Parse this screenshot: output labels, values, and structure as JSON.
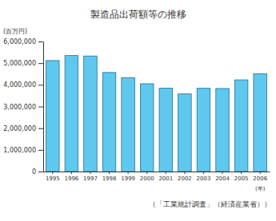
{
  "chart_data": {
    "type": "bar",
    "title": "製造品出荷額等の推移",
    "y_label": "(百万円)",
    "x_label": "(年)",
    "annotations": [
      "（「工業統計調査」（経済産業省））"
    ],
    "categories": [
      "1995",
      "1996",
      "1997",
      "1998",
      "1999",
      "2000",
      "2001",
      "2002",
      "2003",
      "2004",
      "2005",
      "2006"
    ],
    "values": [
      5120000,
      5350000,
      5330000,
      4570000,
      4330000,
      4050000,
      3850000,
      3580000,
      3840000,
      3830000,
      4230000,
      4510000
    ],
    "color": "#5fc8ef",
    "ylim": [
      0,
      6000000
    ],
    "yticks": [
      0,
      {
        "value": 1000000,
        "label": "1,000,000"
      },
      {
        "value": 2000000,
        "label": "2,000,000"
      },
      {
        "value": 3000000,
        "label": "3,000,000"
      },
      {
        "value": 4000000,
        "label": "4,000,000"
      },
      {
        "value": 5000000,
        "label": "5,000,000"
      },
      {
        "value": 6000000,
        "label": "6,000,000"
      }
    ],
    "grid": false
  }
}
